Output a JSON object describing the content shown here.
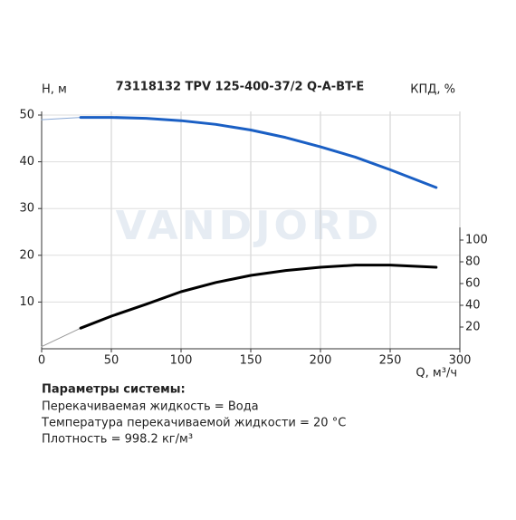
{
  "chart_data": {
    "type": "line",
    "title": "73118132 TPV 125-400-37/2 Q-A-BT-E",
    "y_label": "H, м",
    "y2_label": "КПД, %",
    "x_label": "Q, м³/ч",
    "watermark": "VANDJORD",
    "xlim": [
      0,
      300
    ],
    "xticks": [
      0,
      50,
      100,
      150,
      200,
      250,
      300
    ],
    "ylim": [
      0,
      50
    ],
    "yticks": [
      10,
      20,
      30,
      40,
      50
    ],
    "y2lim": [
      0,
      215
    ],
    "y2ticks": [
      20,
      40,
      60,
      80,
      100
    ],
    "grid": true,
    "series": [
      {
        "color": "#8aa9d6",
        "linewidth": 1,
        "axis": "y",
        "x": [
          0,
          28
        ],
        "values": [
          49,
          49.5
        ]
      },
      {
        "color": "#1a5fc4",
        "linewidth": 3,
        "axis": "y",
        "x": [
          28,
          50,
          75,
          100,
          125,
          150,
          175,
          200,
          225,
          250,
          283
        ],
        "values": [
          49.5,
          49.5,
          49.3,
          48.8,
          48,
          46.8,
          45.2,
          43.2,
          41,
          38.3,
          34.5
        ]
      },
      {
        "color": "#999999",
        "linewidth": 1,
        "axis": "y2",
        "x": [
          0,
          28
        ],
        "values": [
          2,
          19
        ]
      },
      {
        "color": "#000000",
        "linewidth": 3,
        "axis": "y2",
        "x": [
          28,
          50,
          75,
          100,
          125,
          150,
          175,
          200,
          225,
          250,
          283
        ],
        "values": [
          19,
          30,
          41,
          52.5,
          61,
          67.5,
          72,
          75,
          77,
          77,
          75
        ]
      }
    ]
  },
  "system_parameters": {
    "title": "Параметры системы:",
    "lines": [
      "Перекачиваемая жидкость = Вода",
      "Температура перекачиваемой жидкости = 20 °C",
      "Плотность = 998.2 кг/м³"
    ]
  }
}
